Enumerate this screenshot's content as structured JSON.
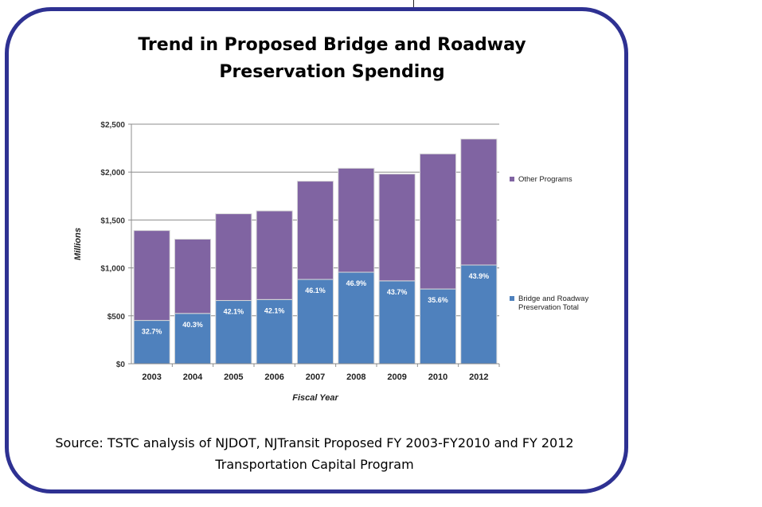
{
  "chart_data": {
    "type": "bar",
    "stacked": true,
    "title": "Trend in Proposed Bridge and Roadway Preservation Spending",
    "xlabel": "Fiscal Year",
    "ylabel": "Millions",
    "ylim": [
      0,
      2500
    ],
    "yticks": [
      "$0",
      "$500",
      "$1,000",
      "$1,500",
      "$2,000",
      "$2,500"
    ],
    "grid": true,
    "legend_position": "right",
    "categories": [
      "2003",
      "2004",
      "2005",
      "2006",
      "2007",
      "2008",
      "2009",
      "2010",
      "2012"
    ],
    "series": [
      {
        "name": "Bridge and Roadway Preservation Total",
        "color": "#4f81bd",
        "values": [
          452,
          525,
          660,
          670,
          880,
          955,
          865,
          780,
          1030
        ],
        "data_labels": [
          "32.7%",
          "40.3%",
          "42.1%",
          "42.1%",
          "46.1%",
          "46.9%",
          "43.7%",
          "35.6%",
          "43.9%"
        ]
      },
      {
        "name": "Other Programs",
        "color": "#8064a2",
        "values": [
          938,
          775,
          905,
          925,
          1025,
          1085,
          1115,
          1410,
          1315
        ]
      }
    ]
  },
  "source": {
    "line1": "Source: TSTC analysis of NJDOT, NJTransit Proposed FY 2003-FY2010  and FY 2012",
    "line2": "Transportation Capital  Program"
  }
}
